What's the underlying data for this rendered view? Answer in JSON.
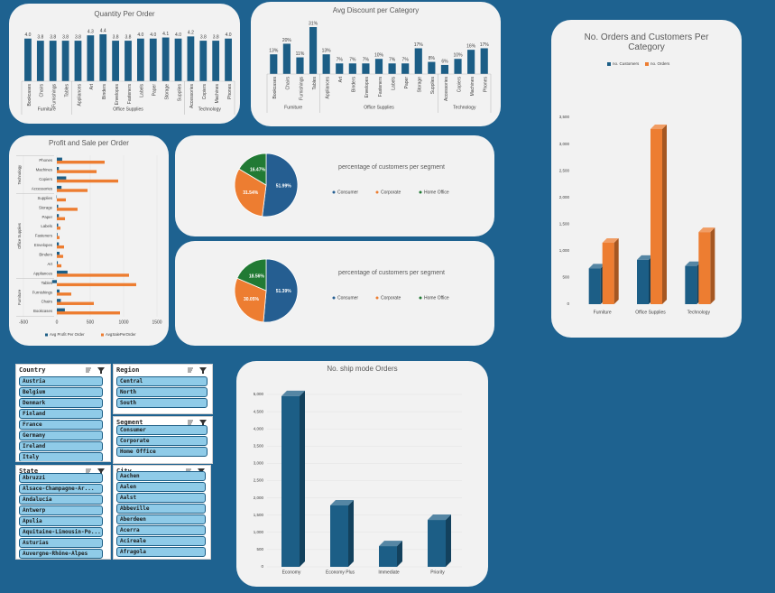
{
  "chart_data": [
    {
      "type": "bar",
      "title": "Quantity Per Order",
      "color": "#1c5e86",
      "categories": [
        "Bookcases",
        "Chairs",
        "Furnishings",
        "Tables",
        "Appliances",
        "Art",
        "Binders",
        "Envelopes",
        "Fasteners",
        "Labels",
        "Paper",
        "Storage",
        "Supplies",
        "Accessories",
        "Copiers",
        "Machines",
        "Phones"
      ],
      "values": [
        4.0,
        3.8,
        3.8,
        3.8,
        3.8,
        4.3,
        4.4,
        3.8,
        3.8,
        4.0,
        4.0,
        4.1,
        4.0,
        4.2,
        3.8,
        3.8,
        4.0
      ],
      "value_labels": [
        "4.0",
        "3.8",
        "3.8",
        "3.8",
        "3.8",
        "4.3",
        "4.4",
        "3.8",
        "3.8",
        "4.0",
        "4.0",
        "4.1",
        "4.0",
        "4.2",
        "3.8",
        "3.8",
        "4.0"
      ],
      "groups": [
        {
          "name": "Furniture",
          "span": [
            0,
            3
          ]
        },
        {
          "name": "Office Supplies",
          "span": [
            4,
            12
          ]
        },
        {
          "name": "Technology",
          "span": [
            13,
            16
          ]
        }
      ]
    },
    {
      "type": "bar",
      "title": "Avg Discount per Category",
      "color": "#1c5e86",
      "categories": [
        "Bookcases",
        "Chairs",
        "Furnishings",
        "Tables",
        "Appliances",
        "Art",
        "Binders",
        "Envelopes",
        "Fasteners",
        "Labels",
        "Paper",
        "Storage",
        "Supplies",
        "Accessories",
        "Copiers",
        "Machines",
        "Phones"
      ],
      "values": [
        13,
        20,
        11,
        31,
        13,
        7,
        7,
        7,
        10,
        7,
        7,
        17,
        8,
        6,
        10,
        16,
        17
      ],
      "value_labels": [
        "13%",
        "20%",
        "11%",
        "31%",
        "13%",
        "7%",
        "7%",
        "7%",
        "10%",
        "7%",
        "7%",
        "17%",
        "8%",
        "6%",
        "10%",
        "16%",
        "17%"
      ],
      "groups": [
        {
          "name": "Furniture",
          "span": [
            0,
            3
          ]
        },
        {
          "name": "Office Supplies",
          "span": [
            4,
            12
          ]
        },
        {
          "name": "Technology",
          "span": [
            13,
            16
          ]
        }
      ]
    },
    {
      "type": "bar",
      "three_d": true,
      "title": "No. Orders and Customers Per Category",
      "grid": false,
      "categories": [
        "Furniture",
        "Office Supplies",
        "Technology"
      ],
      "series": [
        {
          "name": "no. Customers",
          "color": "#1c5e86",
          "values": [
            670,
            830,
            715
          ]
        },
        {
          "name": "no. Orders",
          "color": "#ed7d31",
          "values": [
            1150,
            3280,
            1350
          ]
        }
      ],
      "ylim": [
        0,
        3500
      ],
      "yticks": [
        0,
        500,
        {
          "value": 1000,
          "label": "1,000"
        },
        {
          "value": 1500,
          "label": "1,500"
        },
        {
          "value": 2000,
          "label": "2,000"
        },
        {
          "value": 2500,
          "label": "2,500"
        },
        {
          "value": 3000,
          "label": "3,000"
        },
        {
          "value": 3500,
          "label": "3,500"
        }
      ]
    },
    {
      "type": "barh",
      "title": "Profit and Sale per Order",
      "grid": true,
      "categories": [
        "Bookcases",
        "Chairs",
        "Furnishings",
        "Tables",
        "Appliances",
        "Art",
        "Binders",
        "Envelopes",
        "Fasteners",
        "Labels",
        "Paper",
        "Storage",
        "Supplies",
        "Accessories",
        "Copiers",
        "Machines",
        "Phones"
      ],
      "series": [
        {
          "name": "Avg Profit Per Order",
          "color": "#1c5e86",
          "values": [
            120,
            60,
            40,
            -70,
            160,
            15,
            40,
            30,
            10,
            20,
            30,
            20,
            -5,
            70,
            140,
            30,
            80
          ]
        },
        {
          "name": "AvgSalePerOrder",
          "color": "#ed7d31",
          "values": [
            946,
            554,
            216,
            1189,
            1081,
            68,
            95,
            108,
            40,
            54,
            122,
            310,
            135,
            460,
            919,
            595,
            716
          ]
        }
      ],
      "xlim": [
        -500,
        1500
      ],
      "xticks": [
        -500,
        0,
        500,
        1000,
        1500
      ],
      "groups": [
        {
          "name": "Furniture",
          "span": [
            0,
            3
          ]
        },
        {
          "name": "Office Supplies",
          "span": [
            4,
            12
          ]
        },
        {
          "name": "Technology",
          "span": [
            13,
            16
          ]
        }
      ]
    },
    {
      "type": "pie",
      "title": "percentage of customers per segment",
      "categories": [
        "Consumer",
        "Corporate",
        "Home Office"
      ],
      "colors": [
        "#255e91",
        "#ed7d31",
        "#217a34"
      ],
      "values": [
        51.99,
        31.54,
        16.47
      ],
      "value_labels": [
        "51.99%",
        "31.54%",
        "16.47%"
      ]
    },
    {
      "type": "pie",
      "title": "percentage of customers per segment",
      "categories": [
        "Consumer",
        "Corporate",
        "Home Office"
      ],
      "colors": [
        "#255e91",
        "#ed7d31",
        "#217a34"
      ],
      "values": [
        51.39,
        30.05,
        18.56
      ],
      "value_labels": [
        "51.39%",
        "30.05%",
        "18.56%"
      ]
    },
    {
      "type": "bar",
      "three_d": true,
      "title": "No. ship mode Orders",
      "grid": true,
      "categories": [
        "Economy",
        "Economy Plus",
        "Immediate",
        "Priority"
      ],
      "series": [
        {
          "name": "Orders",
          "color": "#1c5e86",
          "values": [
            4950,
            1780,
            600,
            1360
          ]
        }
      ],
      "ylim": [
        0,
        5000
      ],
      "yticks": [
        0,
        500,
        {
          "value": 1000,
          "label": "1,000"
        },
        {
          "value": 1500,
          "label": "1,500"
        },
        {
          "value": 2000,
          "label": "2,000"
        },
        {
          "value": 2500,
          "label": "2,500"
        },
        {
          "value": 3000,
          "label": "3,000"
        },
        {
          "value": 3500,
          "label": "3,500"
        },
        {
          "value": 4000,
          "label": "4,000"
        },
        {
          "value": 4500,
          "label": "4,500"
        },
        {
          "value": 5000,
          "label": "5,000"
        }
      ]
    }
  ],
  "slicers": [
    {
      "title": "Country",
      "items": [
        "Austria",
        "Belgium",
        "Denmark",
        "Finland",
        "France",
        "Germany",
        "Ireland",
        "Italy"
      ]
    },
    {
      "title": "Region",
      "items": [
        "Central",
        "North",
        "South"
      ]
    },
    {
      "title": "Segment",
      "items": [
        "Consumer",
        "Corporate",
        "Home Office"
      ]
    },
    {
      "title": "State",
      "items": [
        "Abruzzi",
        "Alsace-Champagne-Ar...",
        "Andalucía",
        "Antwerp",
        "Apulia",
        "Aquitaine-Limousin-Po...",
        "Asturias",
        "Auvergne-Rhône-Alpes"
      ]
    },
    {
      "title": "City",
      "items": [
        "Aachen",
        "Aalen",
        "Aalst",
        "Abbeville",
        "Aberdeen",
        "Acerra",
        "Acireale",
        "Afragola"
      ]
    }
  ]
}
